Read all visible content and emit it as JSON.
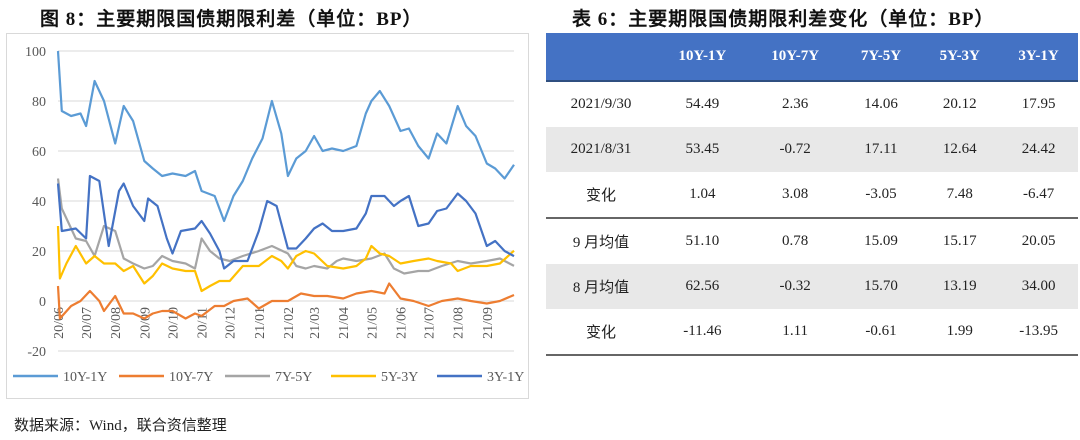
{
  "chart_title": "图 8：主要期限国债期限利差（单位：BP）",
  "table_title": "表 6：主要期限国债期限利差变化（单位：BP）",
  "source": "数据来源：Wind，联合资信整理",
  "chart_data": {
    "type": "line",
    "title": "图 8：主要期限国债期限利差（单位：BP）",
    "xlabel": "",
    "ylabel": "",
    "ylim": [
      -20,
      100
    ],
    "yticks": [
      100,
      80,
      60,
      40,
      20,
      0,
      -20
    ],
    "xlim": [
      "2020-06-01",
      "2021-09-30"
    ],
    "xticks": [
      "20/06",
      "20/07",
      "20/08",
      "20/09",
      "20/10",
      "20/11",
      "20/12",
      "21/01",
      "21/02",
      "21/03",
      "21/04",
      "21/05",
      "21/06",
      "21/07",
      "21/08",
      "21/09"
    ],
    "grid": true,
    "legend": "bottom",
    "series": [
      {
        "name": "10Y-1Y",
        "color": "#5B9BD5",
        "points": [
          [
            "2020-06-01",
            100
          ],
          [
            "2020-06-05",
            76
          ],
          [
            "2020-06-15",
            74
          ],
          [
            "2020-06-25",
            75
          ],
          [
            "2020-07-01",
            70
          ],
          [
            "2020-07-10",
            88
          ],
          [
            "2020-07-20",
            80
          ],
          [
            "2020-08-01",
            63
          ],
          [
            "2020-08-10",
            78
          ],
          [
            "2020-08-20",
            72
          ],
          [
            "2020-09-01",
            56
          ],
          [
            "2020-09-10",
            53
          ],
          [
            "2020-09-20",
            50
          ],
          [
            "2020-10-01",
            51
          ],
          [
            "2020-10-15",
            50
          ],
          [
            "2020-10-25",
            52
          ],
          [
            "2020-11-01",
            44
          ],
          [
            "2020-11-15",
            42
          ],
          [
            "2020-11-25",
            32
          ],
          [
            "2020-12-05",
            42
          ],
          [
            "2020-12-15",
            48
          ],
          [
            "2020-12-25",
            57
          ],
          [
            "2021-01-05",
            65
          ],
          [
            "2021-01-15",
            80
          ],
          [
            "2021-01-25",
            67
          ],
          [
            "2021-02-01",
            50
          ],
          [
            "2021-02-10",
            57
          ],
          [
            "2021-02-20",
            60
          ],
          [
            "2021-03-01",
            66
          ],
          [
            "2021-03-10",
            60
          ],
          [
            "2021-03-20",
            61
          ],
          [
            "2021-04-01",
            60
          ],
          [
            "2021-04-15",
            62
          ],
          [
            "2021-04-25",
            75
          ],
          [
            "2021-05-01",
            80
          ],
          [
            "2021-05-10",
            84
          ],
          [
            "2021-05-20",
            78
          ],
          [
            "2021-06-01",
            68
          ],
          [
            "2021-06-10",
            69
          ],
          [
            "2021-06-20",
            62
          ],
          [
            "2021-07-01",
            57
          ],
          [
            "2021-07-10",
            67
          ],
          [
            "2021-07-20",
            63
          ],
          [
            "2021-08-01",
            78
          ],
          [
            "2021-08-10",
            70
          ],
          [
            "2021-08-20",
            66
          ],
          [
            "2021-09-01",
            55
          ],
          [
            "2021-09-10",
            53
          ],
          [
            "2021-09-20",
            49
          ],
          [
            "2021-09-30",
            54.5
          ]
        ]
      },
      {
        "name": "10Y-7Y",
        "color": "#ED7D31",
        "points": [
          [
            "2020-06-01",
            6
          ],
          [
            "2020-06-03",
            -7
          ],
          [
            "2020-06-15",
            -2
          ],
          [
            "2020-06-25",
            0
          ],
          [
            "2020-07-05",
            4
          ],
          [
            "2020-07-15",
            0
          ],
          [
            "2020-07-20",
            -4
          ],
          [
            "2020-08-01",
            2
          ],
          [
            "2020-08-10",
            -5
          ],
          [
            "2020-08-20",
            -5
          ],
          [
            "2020-09-01",
            -7
          ],
          [
            "2020-09-10",
            -5
          ],
          [
            "2020-09-20",
            -4
          ],
          [
            "2020-10-01",
            -4
          ],
          [
            "2020-10-15",
            -7
          ],
          [
            "2020-10-25",
            -5
          ],
          [
            "2020-11-01",
            -6
          ],
          [
            "2020-11-15",
            -2
          ],
          [
            "2020-11-25",
            -2
          ],
          [
            "2020-12-05",
            0
          ],
          [
            "2020-12-20",
            1
          ],
          [
            "2021-01-01",
            -3
          ],
          [
            "2021-01-15",
            0
          ],
          [
            "2021-02-01",
            0
          ],
          [
            "2021-02-15",
            3
          ],
          [
            "2021-03-01",
            2
          ],
          [
            "2021-03-15",
            2
          ],
          [
            "2021-04-01",
            1
          ],
          [
            "2021-04-15",
            3
          ],
          [
            "2021-05-01",
            4
          ],
          [
            "2021-05-15",
            3
          ],
          [
            "2021-05-20",
            7
          ],
          [
            "2021-06-01",
            1
          ],
          [
            "2021-06-15",
            0
          ],
          [
            "2021-07-01",
            -2
          ],
          [
            "2021-07-15",
            0
          ],
          [
            "2021-08-01",
            1
          ],
          [
            "2021-08-15",
            0
          ],
          [
            "2021-09-01",
            -1
          ],
          [
            "2021-09-15",
            0
          ],
          [
            "2021-09-30",
            2.4
          ]
        ]
      },
      {
        "name": "7Y-5Y",
        "color": "#A5A5A5",
        "points": [
          [
            "2020-06-01",
            49
          ],
          [
            "2020-06-05",
            37
          ],
          [
            "2020-06-20",
            25
          ],
          [
            "2020-07-01",
            24
          ],
          [
            "2020-07-10",
            18
          ],
          [
            "2020-07-20",
            30
          ],
          [
            "2020-08-01",
            28
          ],
          [
            "2020-08-10",
            17
          ],
          [
            "2020-08-20",
            15
          ],
          [
            "2020-09-01",
            13
          ],
          [
            "2020-09-10",
            14
          ],
          [
            "2020-09-20",
            18
          ],
          [
            "2020-10-01",
            16
          ],
          [
            "2020-10-15",
            15
          ],
          [
            "2020-10-25",
            13
          ],
          [
            "2020-11-01",
            25
          ],
          [
            "2020-11-10",
            20
          ],
          [
            "2020-11-20",
            17
          ],
          [
            "2020-12-01",
            16
          ],
          [
            "2020-12-15",
            18
          ],
          [
            "2021-01-01",
            20
          ],
          [
            "2021-01-15",
            22
          ],
          [
            "2021-02-01",
            19
          ],
          [
            "2021-02-10",
            14
          ],
          [
            "2021-02-20",
            13
          ],
          [
            "2021-03-01",
            14
          ],
          [
            "2021-03-15",
            13
          ],
          [
            "2021-03-25",
            16
          ],
          [
            "2021-04-01",
            17
          ],
          [
            "2021-04-15",
            16
          ],
          [
            "2021-05-01",
            17
          ],
          [
            "2021-05-15",
            19
          ],
          [
            "2021-05-25",
            13
          ],
          [
            "2021-06-05",
            11
          ],
          [
            "2021-06-20",
            12
          ],
          [
            "2021-07-01",
            12
          ],
          [
            "2021-07-15",
            14
          ],
          [
            "2021-08-01",
            16
          ],
          [
            "2021-08-15",
            15
          ],
          [
            "2021-09-01",
            16
          ],
          [
            "2021-09-15",
            17
          ],
          [
            "2021-09-30",
            14.06
          ]
        ]
      },
      {
        "name": "5Y-3Y",
        "color": "#FFC000",
        "points": [
          [
            "2020-06-01",
            30
          ],
          [
            "2020-06-03",
            9
          ],
          [
            "2020-06-10",
            15
          ],
          [
            "2020-06-20",
            22
          ],
          [
            "2020-07-01",
            15
          ],
          [
            "2020-07-10",
            18
          ],
          [
            "2020-07-20",
            15
          ],
          [
            "2020-08-01",
            15
          ],
          [
            "2020-08-10",
            12
          ],
          [
            "2020-08-20",
            14
          ],
          [
            "2020-09-01",
            7
          ],
          [
            "2020-09-10",
            10
          ],
          [
            "2020-09-20",
            15
          ],
          [
            "2020-10-01",
            13
          ],
          [
            "2020-10-15",
            12
          ],
          [
            "2020-10-25",
            12
          ],
          [
            "2020-11-01",
            4
          ],
          [
            "2020-11-10",
            6
          ],
          [
            "2020-11-20",
            8
          ],
          [
            "2020-12-01",
            8
          ],
          [
            "2020-12-15",
            14
          ],
          [
            "2021-01-01",
            14
          ],
          [
            "2021-01-15",
            18
          ],
          [
            "2021-01-25",
            16
          ],
          [
            "2021-02-01",
            13
          ],
          [
            "2021-02-10",
            18
          ],
          [
            "2021-02-20",
            20
          ],
          [
            "2021-03-01",
            19
          ],
          [
            "2021-03-15",
            14
          ],
          [
            "2021-04-01",
            13
          ],
          [
            "2021-04-15",
            14
          ],
          [
            "2021-04-25",
            17
          ],
          [
            "2021-05-01",
            22
          ],
          [
            "2021-05-10",
            19
          ],
          [
            "2021-05-20",
            18
          ],
          [
            "2021-06-01",
            15
          ],
          [
            "2021-06-15",
            16
          ],
          [
            "2021-07-01",
            17
          ],
          [
            "2021-07-10",
            16
          ],
          [
            "2021-07-25",
            15
          ],
          [
            "2021-08-01",
            12
          ],
          [
            "2021-08-15",
            14
          ],
          [
            "2021-09-01",
            14
          ],
          [
            "2021-09-15",
            15
          ],
          [
            "2021-09-30",
            20.12
          ]
        ]
      },
      {
        "name": "3Y-1Y",
        "color": "#4472C4",
        "points": [
          [
            "2020-06-01",
            47
          ],
          [
            "2020-06-05",
            28
          ],
          [
            "2020-06-20",
            29
          ],
          [
            "2020-07-01",
            25
          ],
          [
            "2020-07-05",
            50
          ],
          [
            "2020-07-15",
            48
          ],
          [
            "2020-07-25",
            22
          ],
          [
            "2020-08-05",
            44
          ],
          [
            "2020-08-10",
            47
          ],
          [
            "2020-08-20",
            38
          ],
          [
            "2020-09-01",
            32
          ],
          [
            "2020-09-05",
            41
          ],
          [
            "2020-09-15",
            38
          ],
          [
            "2020-09-25",
            25
          ],
          [
            "2020-10-01",
            19
          ],
          [
            "2020-10-10",
            28
          ],
          [
            "2020-10-25",
            29
          ],
          [
            "2020-11-01",
            32
          ],
          [
            "2020-11-10",
            27
          ],
          [
            "2020-11-20",
            20
          ],
          [
            "2020-11-25",
            13
          ],
          [
            "2020-12-05",
            16
          ],
          [
            "2020-12-20",
            16
          ],
          [
            "2021-01-01",
            28
          ],
          [
            "2021-01-10",
            40
          ],
          [
            "2021-01-20",
            38
          ],
          [
            "2021-02-01",
            21
          ],
          [
            "2021-02-10",
            21
          ],
          [
            "2021-02-20",
            25
          ],
          [
            "2021-03-01",
            29
          ],
          [
            "2021-03-10",
            31
          ],
          [
            "2021-03-20",
            28
          ],
          [
            "2021-04-01",
            28
          ],
          [
            "2021-04-15",
            29
          ],
          [
            "2021-04-25",
            35
          ],
          [
            "2021-05-01",
            42
          ],
          [
            "2021-05-15",
            42
          ],
          [
            "2021-05-25",
            38
          ],
          [
            "2021-06-01",
            40
          ],
          [
            "2021-06-10",
            42
          ],
          [
            "2021-06-20",
            30
          ],
          [
            "2021-07-01",
            31
          ],
          [
            "2021-07-10",
            36
          ],
          [
            "2021-07-20",
            37
          ],
          [
            "2021-08-01",
            43
          ],
          [
            "2021-08-10",
            40
          ],
          [
            "2021-08-20",
            35
          ],
          [
            "2021-09-01",
            22
          ],
          [
            "2021-09-10",
            24
          ],
          [
            "2021-09-20",
            20
          ],
          [
            "2021-09-30",
            17.95
          ]
        ]
      }
    ]
  },
  "table": {
    "header_color": "#4472C4",
    "columns": [
      "",
      "10Y-1Y",
      "10Y-7Y",
      "7Y-5Y",
      "5Y-3Y",
      "3Y-1Y"
    ],
    "rows": [
      [
        "2021/9/30",
        "54.49",
        "2.36",
        "14.06",
        "20.12",
        "17.95"
      ],
      [
        "2021/8/31",
        "53.45",
        "-0.72",
        "17.11",
        "12.64",
        "24.42"
      ],
      [
        "变化",
        "1.04",
        "3.08",
        "-3.05",
        "7.48",
        "-6.47"
      ],
      [
        "9 月均值",
        "51.10",
        "0.78",
        "15.09",
        "15.17",
        "20.05"
      ],
      [
        "8 月均值",
        "62.56",
        "-0.32",
        "15.70",
        "13.19",
        "34.00"
      ],
      [
        "变化",
        "-11.46",
        "1.11",
        "-0.61",
        "1.99",
        "-13.95"
      ]
    ]
  }
}
